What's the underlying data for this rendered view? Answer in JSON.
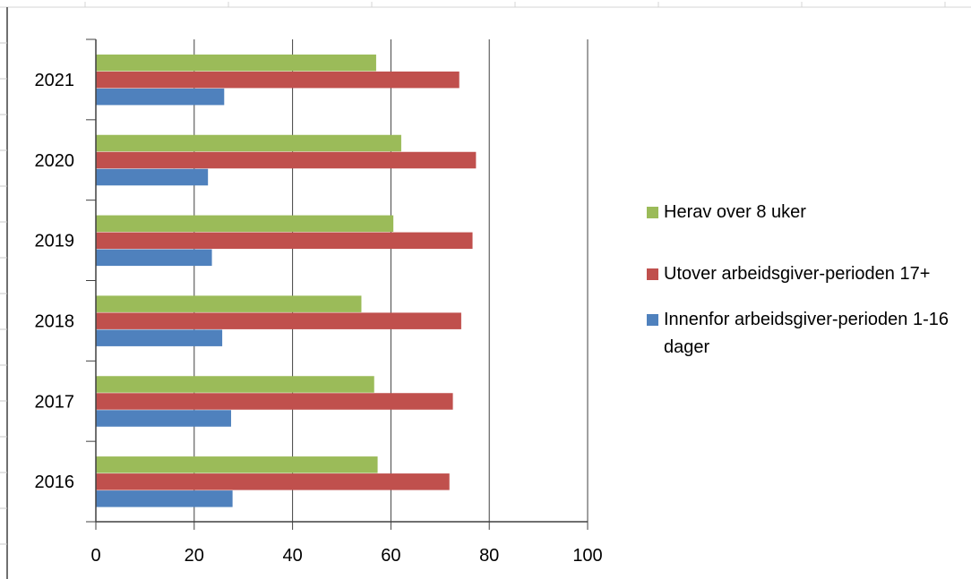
{
  "chart_data": {
    "type": "bar",
    "orientation": "horizontal",
    "categories": [
      "2016",
      "2017",
      "2018",
      "2019",
      "2020",
      "2021"
    ],
    "series": [
      {
        "name": "Innenfor arbeidsgiver-perioden 1-16 dager",
        "color": "#4f81bd",
        "values": [
          27.8,
          27.5,
          25.7,
          23.6,
          22.8,
          26.1
        ]
      },
      {
        "name": "Utover arbeidsgiver-perioden 17+",
        "color": "#c0504d",
        "values": [
          71.9,
          72.6,
          74.3,
          76.6,
          77.3,
          73.9
        ]
      },
      {
        "name": "Herav over 8 uker",
        "color": "#9bbb59",
        "values": [
          57.3,
          56.6,
          54.0,
          60.5,
          62.1,
          57.0
        ]
      }
    ],
    "xlim": [
      0,
      100
    ],
    "xticks": [
      0,
      20,
      40,
      60,
      80,
      100
    ],
    "grid": "vertical",
    "legend_position": "right",
    "title": "",
    "xlabel": "",
    "ylabel": ""
  }
}
